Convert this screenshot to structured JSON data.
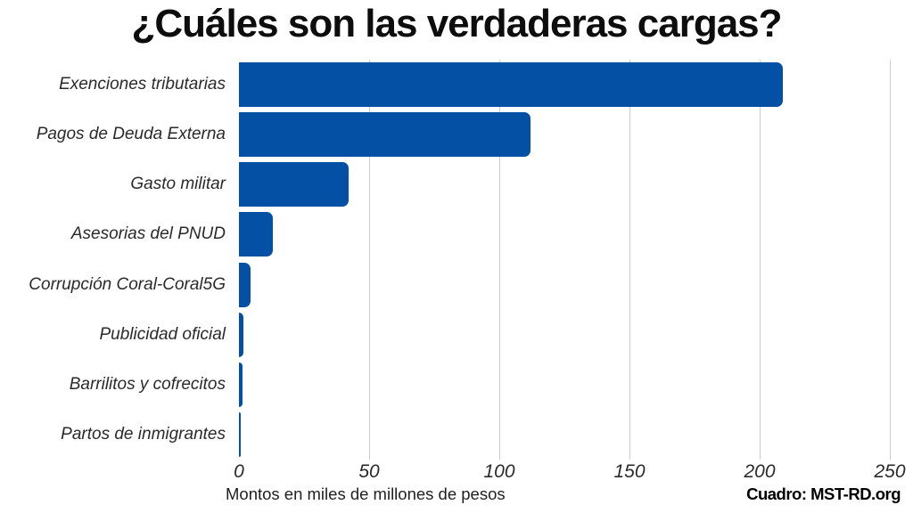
{
  "title": "¿Cuáles son las verdaderas cargas?",
  "chart_data": {
    "type": "bar",
    "orientation": "horizontal",
    "title": "¿Cuáles son las verdaderas cargas?",
    "categories": [
      "Exenciones tributarias",
      "Pagos de Deuda Externa",
      "Gasto militar",
      "Asesorias del PNUD",
      "Corrupción Coral-Coral5G",
      "Publicidad oficial",
      "Barrilitos y cofrecitos",
      "Partos de inmigrantes"
    ],
    "values": [
      209,
      112,
      42,
      13,
      4.5,
      1.7,
      1.5,
      0.5
    ],
    "xlabel": "Montos en miles de millones de pesos",
    "ylabel": "",
    "xlim": [
      0,
      250
    ],
    "xticks": [
      0,
      50,
      100,
      150,
      200,
      250
    ],
    "grid": "vertical-gridlines-on",
    "legend": "none",
    "bar_color": "#0450a4",
    "gridline_color": "#cccccc"
  },
  "footer": {
    "source": "Cuadro: MST-RD.org"
  }
}
